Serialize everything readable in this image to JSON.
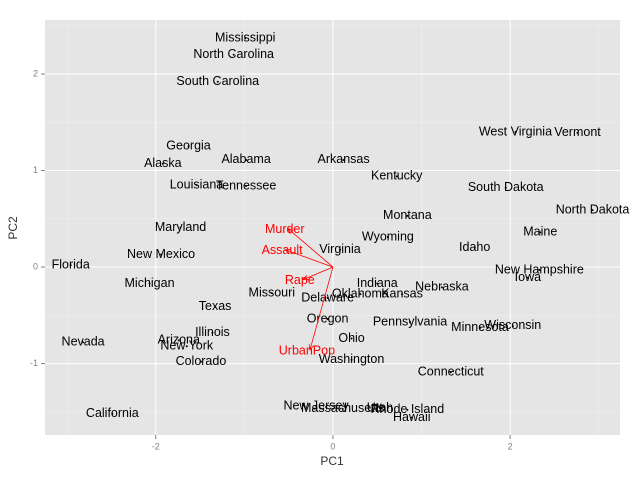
{
  "chart_data": {
    "type": "biplot",
    "xlabel": "PC1",
    "ylabel": "PC2",
    "xlim": [
      -3.25,
      3.24
    ],
    "ylim": [
      -1.74,
      2.56
    ],
    "xticks": [
      -2,
      0,
      2
    ],
    "yticks": [
      -1,
      0,
      1,
      2
    ],
    "grid": true,
    "point_color": "#000000",
    "points": {
      "labels": [
        "Mississippi",
        "North Carolina",
        "South Carolina",
        "Georgia",
        "Alaska",
        "Alabama",
        "Arkansas",
        "Louisiana",
        "Tennessee",
        "Kentucky",
        "West Virginia",
        "Vermont",
        "South Dakota",
        "North Dakota",
        "Montana",
        "Maine",
        "Maryland",
        "Wyoming",
        "Virginia",
        "Idaho",
        "New Mexico",
        "Florida",
        "New Hampshire",
        "Iowa",
        "Michigan",
        "Indiana",
        "Nebraska",
        "Missouri",
        "Kansas",
        "Oklahoma",
        "Delaware",
        "Texas",
        "Oregon",
        "Pennsylvania",
        "Minnesota",
        "Wisconsin",
        "Illinois",
        "Ohio",
        "Arizona",
        "Nevada",
        "New York",
        "Colorado",
        "Washington",
        "Connecticut",
        "New Jersey",
        "Massachusetts",
        "Rhode Island",
        "Utah",
        "Hawaii",
        "California"
      ],
      "x": [
        -0.99,
        -1.12,
        -1.3,
        -1.63,
        -1.92,
        -0.98,
        0.12,
        -1.54,
        -0.98,
        0.72,
        2.06,
        2.76,
        1.95,
        2.93,
        0.84,
        2.34,
        -1.72,
        0.62,
        0.08,
        1.6,
        -1.94,
        -2.96,
        2.33,
        2.2,
        -2.07,
        0.5,
        1.23,
        -0.69,
        0.78,
        0.31,
        -0.06,
        -1.33,
        -0.06,
        0.87,
        1.66,
        2.03,
        -1.36,
        0.21,
        -1.74,
        -2.82,
        -1.65,
        -1.49,
        0.21,
        1.33,
        -0.19,
        0.11,
        0.84,
        0.53,
        0.89,
        -2.49
      ],
      "y": [
        2.37,
        2.2,
        1.92,
        1.25,
        1.07,
        1.11,
        1.11,
        0.85,
        0.84,
        0.94,
        1.4,
        1.39,
        0.82,
        0.59,
        0.53,
        0.36,
        0.41,
        0.31,
        0.18,
        0.2,
        0.13,
        0.02,
        -0.03,
        -0.11,
        -0.17,
        -0.17,
        -0.21,
        -0.27,
        -0.28,
        -0.28,
        -0.32,
        -0.41,
        -0.54,
        -0.57,
        -0.63,
        -0.61,
        -0.68,
        -0.74,
        -0.76,
        -0.78,
        -0.82,
        -0.98,
        -0.96,
        -1.09,
        -1.44,
        -1.47,
        -1.48,
        -1.46,
        -1.56,
        -1.52
      ]
    },
    "loadings": {
      "color": "#ff0000",
      "labels": [
        "Murder",
        "Assault",
        "Rape",
        "UrbanPop"
      ],
      "x": [
        -0.51,
        -0.54,
        -0.34,
        -0.26
      ],
      "y": [
        0.4,
        0.18,
        -0.13,
        -0.86
      ]
    }
  }
}
